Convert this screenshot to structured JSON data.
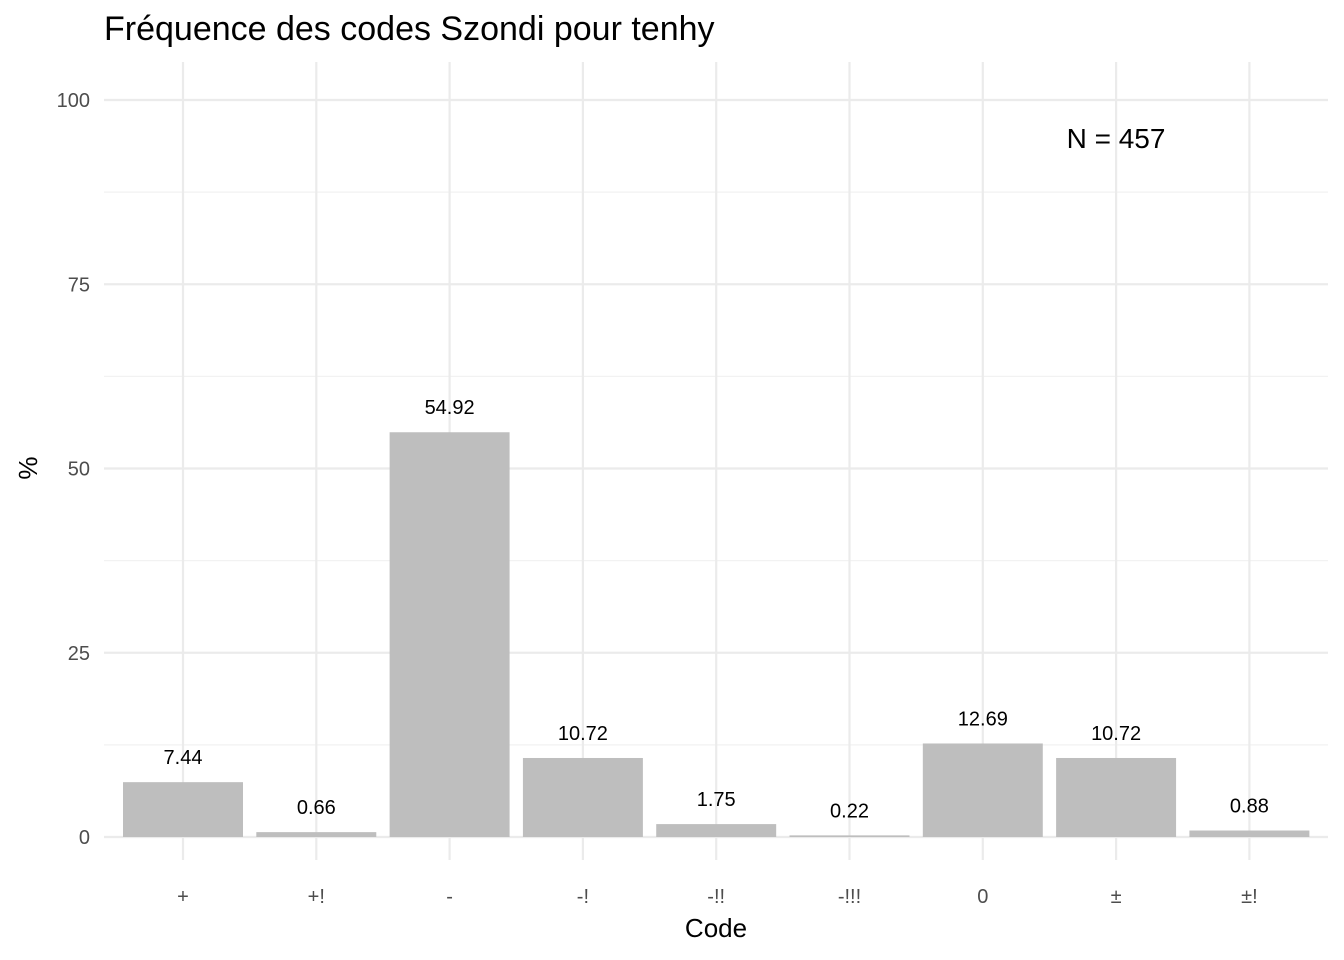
{
  "chart_data": {
    "type": "bar",
    "title": "Fréquence des codes Szondi pour tenhy",
    "xlabel": "Code",
    "ylabel": "%",
    "categories": [
      "+",
      "+!",
      "-",
      "-!",
      "-!!",
      "-!!!",
      "0",
      "±",
      "±!"
    ],
    "values": [
      7.44,
      0.66,
      54.92,
      10.72,
      1.75,
      0.22,
      12.69,
      10.72,
      0.88
    ],
    "value_labels": [
      "7.44",
      "0.66",
      "54.92",
      "10.72",
      "1.75",
      "0.22",
      "12.69",
      "10.72",
      "0.88"
    ],
    "ylim": [
      0,
      100
    ],
    "yticks": [
      0,
      25,
      50,
      75,
      100
    ],
    "ytick_labels": [
      "0",
      "25",
      "50",
      "75",
      "100"
    ],
    "annotation": "N = 457",
    "grid": true,
    "legend": "none",
    "colors": {
      "bar": "#bebebe",
      "grid": "#ebebeb",
      "tick_text": "#4d4d4d"
    }
  }
}
